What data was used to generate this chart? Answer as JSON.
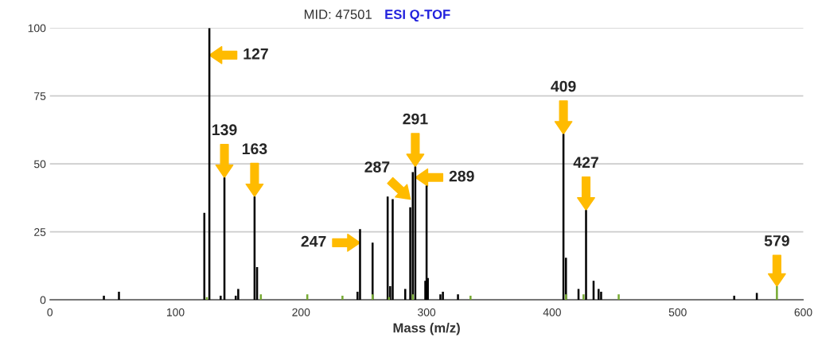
{
  "chart_data": {
    "type": "bar",
    "title": "MID: 47501",
    "subtitle": "ESI Q-TOF",
    "xlabel": "Mass (m/z)",
    "series": [
      {
        "color": "#000000",
        "x": [
          43,
          55,
          123,
          127,
          136,
          139,
          148,
          150,
          163,
          165,
          245,
          247,
          257,
          269,
          271,
          273,
          283,
          287,
          289,
          291,
          299,
          300,
          301,
          311,
          313,
          325,
          409,
          411,
          421,
          427,
          433,
          437,
          439,
          545,
          563
        ],
        "values": [
          1.5,
          3,
          32,
          100,
          1.5,
          45,
          1.5,
          4,
          38,
          12,
          3,
          26,
          21,
          38,
          5,
          37,
          4,
          34,
          47,
          49,
          7,
          42,
          8,
          2,
          3,
          2,
          61,
          15.5,
          4,
          33,
          7,
          4,
          3,
          1.5,
          2.5
        ]
      },
      {
        "color": "#77aa33",
        "x": [
          125,
          168,
          205,
          233,
          257,
          270,
          289,
          335,
          411,
          425,
          453,
          579
        ],
        "values": [
          1,
          2,
          2,
          1.5,
          2,
          1,
          2,
          1.5,
          2,
          2,
          2,
          5
        ]
      }
    ],
    "annotations": [
      {
        "text": "127",
        "x": 127,
        "y": 90
      },
      {
        "text": "139",
        "x": 139,
        "y": 45
      },
      {
        "text": "163",
        "x": 163,
        "y": 38
      },
      {
        "text": "247",
        "x": 247,
        "y": 21
      },
      {
        "text": "287",
        "x": 287,
        "y": 37
      },
      {
        "text": "289",
        "x": 291,
        "y": 45
      },
      {
        "text": "291",
        "x": 291,
        "y": 49
      },
      {
        "text": "409",
        "x": 409,
        "y": 61
      },
      {
        "text": "427",
        "x": 427,
        "y": 33
      },
      {
        "text": "579",
        "x": 579,
        "y": 5
      }
    ],
    "xlim": [
      0,
      600
    ],
    "xticks": [
      0,
      100,
      200,
      300,
      400,
      500,
      600
    ],
    "ylim": [
      0,
      100
    ],
    "yticks": [
      0,
      25,
      50,
      75,
      100
    ],
    "grid": "y"
  }
}
